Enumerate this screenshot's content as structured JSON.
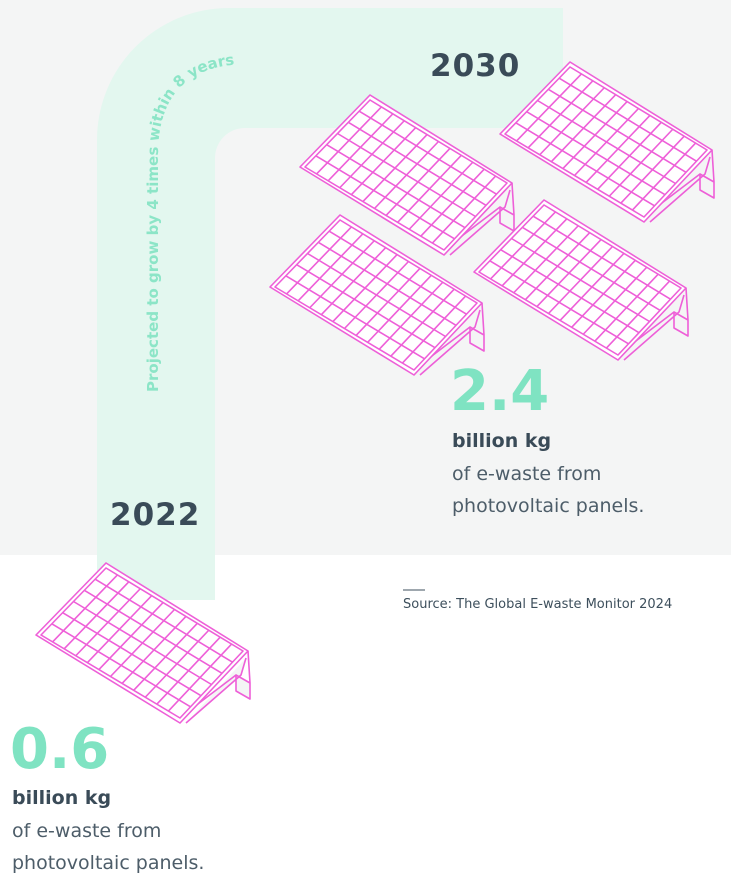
{
  "arrow_label": "Projected to grow by 4 times within 8 years",
  "stats": [
    {
      "year": "2022",
      "value": "0.6",
      "unit": "billion kg",
      "description": "of e-waste from photovoltaic panels."
    },
    {
      "year": "2030",
      "value": "2.4",
      "unit": "billion kg",
      "description": "of e-waste from photovoltaic panels."
    }
  ],
  "source": "Source: The Global E-waste Monitor 2024"
}
